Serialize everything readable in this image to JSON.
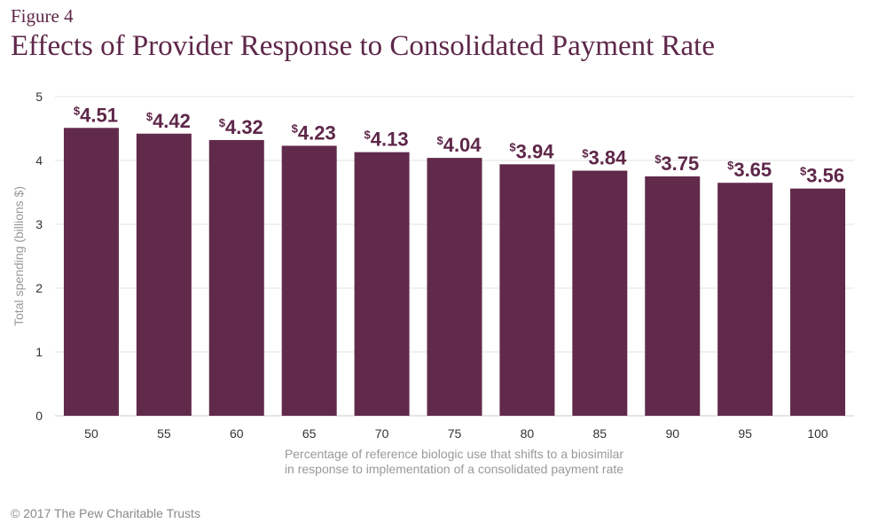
{
  "figure_label": "Figure 4",
  "title": "Effects of Provider Response to Consolidated Payment Rate",
  "credit": "© 2017 The Pew Charitable Trusts",
  "chart_data": {
    "type": "bar",
    "categories": [
      "50",
      "55",
      "60",
      "65",
      "70",
      "75",
      "80",
      "85",
      "90",
      "95",
      "100"
    ],
    "values": [
      4.51,
      4.42,
      4.32,
      4.23,
      4.13,
      4.04,
      3.94,
      3.84,
      3.75,
      3.65,
      3.56
    ],
    "data_labels": [
      "4.51",
      "4.42",
      "4.32",
      "4.23",
      "4.13",
      "4.04",
      "3.94",
      "3.84",
      "3.75",
      "3.65",
      "3.56"
    ],
    "label_prefix": "$",
    "xlabel": [
      "Percentage of reference biologic use that shifts to a biosimilar",
      "in response to implementation of a consolidated payment rate"
    ],
    "ylabel": "Total spending (billions $)",
    "ylim": [
      0,
      5
    ],
    "yticks": [
      0,
      1,
      2,
      3,
      4,
      5
    ],
    "grid": true,
    "bar_color": "#612a4a"
  }
}
